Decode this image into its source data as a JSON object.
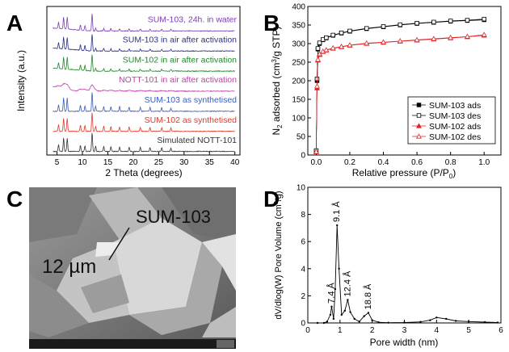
{
  "panels": {
    "A": {
      "letter": "A"
    },
    "B": {
      "letter": "B"
    },
    "C": {
      "letter": "C"
    },
    "D": {
      "letter": "D"
    }
  },
  "chart_data": [
    {
      "id": "A",
      "type": "line",
      "xlabel": "2 Theta (degrees)",
      "ylabel": "Intensity (a.u.)",
      "xlim": [
        3,
        41
      ],
      "xticks": [
        "5",
        "10",
        "15",
        "20",
        "25",
        "30",
        "35",
        "40"
      ],
      "peaks_2theta": [
        5.3,
        6.3,
        7.0,
        9.6,
        10.5,
        11.9,
        12.6,
        14.2,
        15.6,
        17.3,
        19.2,
        21.4,
        23.3,
        25.6,
        27.4
      ],
      "series": [
        {
          "name": "SUM-103, 24h. in water",
          "color": "#7b3fb5"
        },
        {
          "name": "SUM-103 in air after activation",
          "color": "#2b2f8c"
        },
        {
          "name": "SUM-102 in air after activation",
          "color": "#1d8a2a"
        },
        {
          "name": "NOTT-101 in air after activation",
          "color": "#c040a8"
        },
        {
          "name": "SUM-103 as synthetised",
          "color": "#3b5bbf"
        },
        {
          "name": "SUM-102 as synthetised",
          "color": "#e03a2a"
        },
        {
          "name": "Simulated NOTT-101",
          "color": "#333333"
        }
      ]
    },
    {
      "id": "B",
      "type": "scatter",
      "xlabel": "Relative pressure (P/P0)",
      "ylabel": "N2 adsorbed (cm3/g STP)",
      "xlim": [
        -0.05,
        1.1
      ],
      "ylim": [
        0,
        400
      ],
      "xticks": [
        "0.0",
        "0.2",
        "0.4",
        "0.6",
        "0.8",
        "1.0"
      ],
      "yticks": [
        "0",
        "50",
        "100",
        "150",
        "200",
        "250",
        "300",
        "350",
        "400"
      ],
      "legend": "bottom-right",
      "x": [
        0.0,
        0.005,
        0.01,
        0.02,
        0.04,
        0.06,
        0.1,
        0.15,
        0.2,
        0.3,
        0.4,
        0.5,
        0.6,
        0.7,
        0.8,
        0.9,
        1.0
      ],
      "series": [
        {
          "name": "SUM-103 ads",
          "color": "#000000",
          "marker": "square-filled",
          "values": [
            10,
            200,
            285,
            300,
            310,
            315,
            322,
            328,
            333,
            340,
            345,
            350,
            354,
            357,
            360,
            362,
            364
          ]
        },
        {
          "name": "SUM-103 des",
          "color": "#000000",
          "marker": "square-open",
          "values": [
            12,
            205,
            287,
            302,
            311,
            316,
            323,
            329,
            334,
            341,
            346,
            351,
            355,
            358,
            361,
            363,
            366
          ]
        },
        {
          "name": "SUM-102 ads",
          "color": "#e02020",
          "marker": "triangle-filled",
          "values": [
            8,
            180,
            255,
            270,
            278,
            282,
            287,
            291,
            295,
            300,
            303,
            306,
            309,
            312,
            315,
            318,
            322
          ]
        },
        {
          "name": "SUM-102 des",
          "color": "#e02020",
          "marker": "triangle-open",
          "values": [
            9,
            185,
            257,
            272,
            279,
            283,
            288,
            292,
            296,
            301,
            304,
            307,
            310,
            313,
            316,
            319,
            324
          ]
        }
      ]
    },
    {
      "id": "D",
      "type": "line",
      "xlabel": "Pore width (nm)",
      "ylabel": "dV/dlog(W) Pore Volume (cm3/g)",
      "xlim": [
        0,
        6
      ],
      "ylim": [
        0,
        10
      ],
      "xticks": [
        "0",
        "1",
        "2",
        "3",
        "4",
        "5",
        "6"
      ],
      "yticks": [
        "0",
        "2",
        "4",
        "6",
        "8",
        "10"
      ],
      "x": [
        0.3,
        0.5,
        0.6,
        0.7,
        0.74,
        0.8,
        0.85,
        0.91,
        0.97,
        1.05,
        1.15,
        1.24,
        1.32,
        1.45,
        1.6,
        1.75,
        1.88,
        2.0,
        2.2,
        2.5,
        3.0,
        3.5,
        3.8,
        4.0,
        4.3,
        4.6,
        5.0,
        5.5,
        5.9
      ],
      "values": [
        0,
        0,
        0.1,
        0.6,
        1.2,
        0.3,
        2.5,
        7.2,
        4.0,
        0.6,
        0.9,
        1.7,
        0.8,
        0.3,
        0.1,
        0.5,
        0.75,
        0.2,
        0.05,
        0.02,
        0.03,
        0.08,
        0.2,
        0.4,
        0.3,
        0.15,
        0.1,
        0.06,
        0.03
      ],
      "peak_labels": [
        {
          "text": "7.4 Å",
          "x": 0.74,
          "y": 1.2
        },
        {
          "text": "9.1 Å",
          "x": 0.91,
          "y": 7.2
        },
        {
          "text": "12.4 Å",
          "x": 1.24,
          "y": 1.7
        },
        {
          "text": "18.8 Å",
          "x": 1.88,
          "y": 0.75
        }
      ]
    }
  ],
  "sem": {
    "sample_label": "SUM-103",
    "scale_label": "12 µm"
  }
}
